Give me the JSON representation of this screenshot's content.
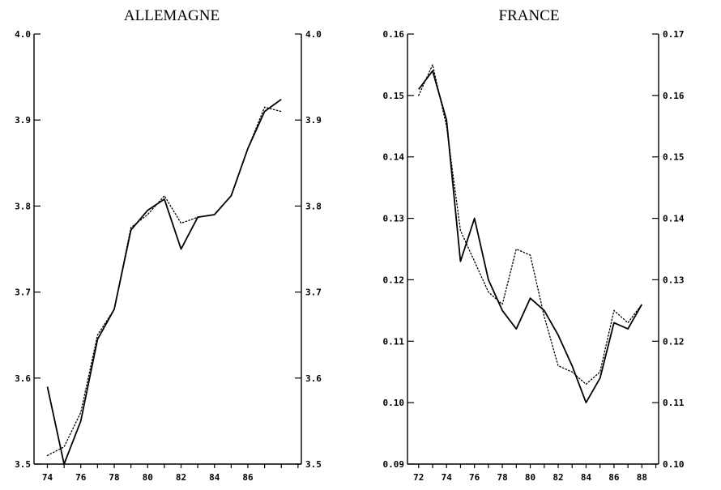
{
  "chart_data": [
    {
      "type": "line",
      "title": "ALLEMAGNE",
      "x": [
        74,
        75,
        76,
        77,
        78,
        79,
        80,
        81,
        82,
        83,
        84,
        85,
        86,
        87,
        88
      ],
      "xticks": [
        "74",
        "76",
        "78",
        "80",
        "82",
        "84",
        "86"
      ],
      "xtick_values": [
        74,
        76,
        78,
        80,
        82,
        84,
        86
      ],
      "xlim": [
        73.2,
        89.2
      ],
      "ylim_left": [
        3.5,
        4.0
      ],
      "ylim_right": [
        3.5,
        4.0
      ],
      "yticks_left": [
        "3.5",
        "3.6",
        "3.7",
        "3.8",
        "3.9",
        "4.0"
      ],
      "yticks_right": [
        "3.5",
        "3.6",
        "3.7",
        "3.8",
        "3.9",
        "4.0"
      ],
      "ytick_values_left": [
        3.5,
        3.6,
        3.7,
        3.8,
        3.9,
        4.0
      ],
      "ytick_values_right": [
        3.5,
        3.6,
        3.7,
        3.8,
        3.9,
        4.0
      ],
      "series": [
        {
          "style": "solid",
          "axis": "left",
          "values": [
            3.59,
            3.5,
            3.55,
            3.645,
            3.68,
            3.772,
            3.795,
            3.808,
            3.75,
            3.787,
            3.79,
            3.812,
            3.867,
            3.91,
            3.924
          ]
        },
        {
          "style": "dotted",
          "axis": "right",
          "values": [
            3.51,
            3.52,
            3.56,
            3.65,
            3.68,
            3.775,
            3.79,
            3.812,
            3.78,
            3.787,
            3.79,
            3.812,
            3.867,
            3.915,
            3.91
          ]
        }
      ]
    },
    {
      "type": "line",
      "title": "FRANCE",
      "x": [
        72,
        73,
        74,
        75,
        76,
        77,
        78,
        79,
        80,
        81,
        82,
        83,
        84,
        85,
        86,
        87,
        88
      ],
      "xticks": [
        "72",
        "74",
        "76",
        "78",
        "80",
        "82",
        "84",
        "86",
        "88"
      ],
      "xtick_values": [
        72,
        74,
        76,
        78,
        80,
        82,
        84,
        86,
        88
      ],
      "xlim": [
        71.2,
        89.2
      ],
      "ylim_left": [
        0.09,
        0.16
      ],
      "ylim_right": [
        0.1,
        0.17
      ],
      "yticks_left": [
        "0.09",
        "0.10",
        "0.11",
        "0.12",
        "0.13",
        "0.14",
        "0.15",
        "0.16"
      ],
      "yticks_right": [
        "0.10",
        "0.11",
        "0.12",
        "0.13",
        "0.14",
        "0.15",
        "0.16",
        "0.17"
      ],
      "ytick_values_left": [
        0.09,
        0.1,
        0.11,
        0.12,
        0.13,
        0.14,
        0.15,
        0.16
      ],
      "ytick_values_right": [
        0.1,
        0.11,
        0.12,
        0.13,
        0.14,
        0.15,
        0.16,
        0.17
      ],
      "series": [
        {
          "style": "solid",
          "axis": "left",
          "values": [
            0.151,
            0.154,
            0.146,
            0.123,
            0.13,
            0.12,
            0.115,
            0.112,
            0.117,
            0.115,
            0.111,
            0.106,
            0.1,
            0.104,
            0.113,
            0.112,
            0.116
          ]
        },
        {
          "style": "dotted",
          "axis": "right",
          "values": [
            0.16,
            0.165,
            0.155,
            0.138,
            0.133,
            0.128,
            0.126,
            0.135,
            0.134,
            0.124,
            0.116,
            0.115,
            0.113,
            0.115,
            0.125,
            0.123,
            0.126
          ]
        }
      ]
    }
  ]
}
